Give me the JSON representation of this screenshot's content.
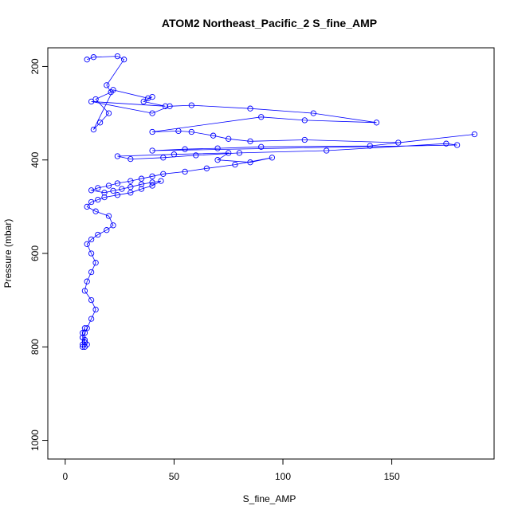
{
  "chart_data": {
    "type": "line",
    "title": "ATOM2 Northeast_Pacific_2 S_fine_AMP",
    "xlabel": "S_fine_AMP",
    "ylabel": "Pressure (mbar)",
    "xlim": [
      -8,
      197
    ],
    "ylim": [
      1040,
      160
    ],
    "y_reversed": true,
    "xticks": [
      0,
      50,
      100,
      150
    ],
    "yticks": [
      200,
      400,
      600,
      800,
      1000
    ],
    "grid": false,
    "legend": "none",
    "series_color": "#0000ff",
    "marker": "open-circle",
    "series": [
      {
        "x": [
          10,
          13,
          24,
          27,
          19,
          21,
          14,
          20,
          16,
          13,
          22,
          38,
          40,
          36,
          46,
          12,
          40,
          48,
          58,
          85,
          114,
          143,
          110,
          90,
          40,
          52,
          58,
          68,
          75,
          85,
          110,
          153,
          188,
          140,
          90,
          70,
          55,
          40,
          180,
          175,
          120,
          80,
          60,
          45,
          30,
          24,
          50,
          75,
          70,
          85,
          95,
          78,
          65,
          55,
          45,
          40,
          35,
          30,
          24,
          20,
          15,
          12,
          18,
          22,
          26,
          30,
          35,
          40,
          44,
          40,
          35,
          30,
          24,
          18,
          15,
          12,
          10,
          14,
          20,
          22,
          19,
          15,
          12,
          10,
          12,
          14,
          12,
          10,
          9,
          12,
          14,
          12,
          10,
          9,
          8,
          9,
          10,
          9,
          8,
          8,
          9,
          9,
          8,
          8,
          9
        ],
        "y": [
          185,
          180,
          178,
          185,
          240,
          255,
          270,
          300,
          320,
          335,
          250,
          268,
          265,
          275,
          285,
          275,
          300,
          285,
          283,
          290,
          300,
          320,
          315,
          308,
          340,
          338,
          340,
          348,
          355,
          360,
          357,
          363,
          345,
          370,
          372,
          375,
          377,
          380,
          368,
          365,
          380,
          385,
          390,
          395,
          398,
          392,
          388,
          385,
          400,
          405,
          395,
          410,
          418,
          425,
          430,
          435,
          440,
          445,
          450,
          455,
          460,
          465,
          470,
          466,
          462,
          458,
          452,
          448,
          445,
          455,
          462,
          470,
          475,
          480,
          485,
          490,
          500,
          510,
          520,
          540,
          550,
          560,
          570,
          580,
          600,
          620,
          640,
          660,
          680,
          700,
          720,
          740,
          760,
          770,
          780,
          790,
          795,
          800,
          800,
          795,
          790,
          785,
          780,
          770,
          760
        ]
      }
    ]
  }
}
